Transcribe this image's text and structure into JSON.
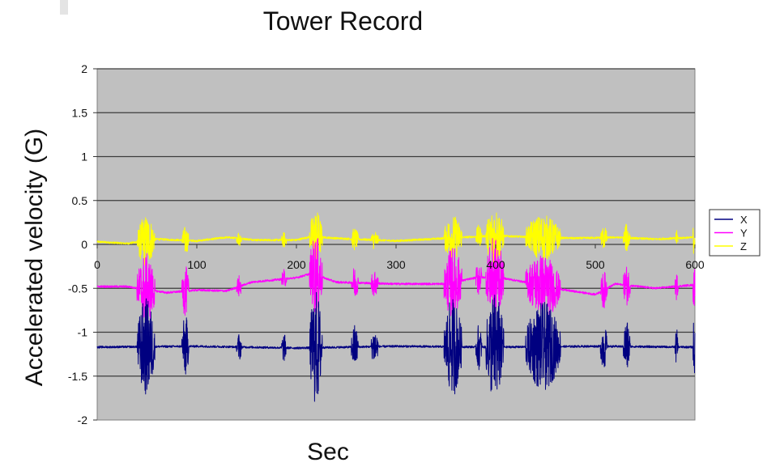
{
  "chart_data": {
    "type": "line",
    "title": "Tower Record",
    "xlabel": "Sec",
    "ylabel": "Accelerated velocity (G)",
    "xlim": [
      0,
      600
    ],
    "ylim": [
      -2,
      2
    ],
    "x_ticks": [
      "0",
      "100",
      "200",
      "300",
      "400",
      "500",
      "600"
    ],
    "y_ticks": [
      "2",
      "1.5",
      "1",
      "0.5",
      "0",
      "-0.5",
      "-1",
      "-1.5",
      "-2"
    ],
    "y_tick_values": [
      2,
      1.5,
      1,
      0.5,
      0,
      -0.5,
      -1,
      -1.5,
      -2
    ],
    "grid": true,
    "plot_background": "#c0c0c0",
    "legend_position": "right",
    "series": [
      {
        "name": "X",
        "color": "#000080",
        "baseline": -1.17,
        "bands": 3,
        "keypoints": [
          [
            0,
            -1.17
          ],
          [
            100,
            -1.16
          ],
          [
            200,
            -1.18
          ],
          [
            300,
            -1.16
          ],
          [
            400,
            -1.17
          ],
          [
            500,
            -1.16
          ],
          [
            600,
            -1.17
          ]
        ],
        "bursts": [
          [
            40,
            58,
            0.55
          ],
          [
            85,
            92,
            0.35
          ],
          [
            140,
            145,
            0.15
          ],
          [
            185,
            190,
            0.15
          ],
          [
            213,
            226,
            0.65
          ],
          [
            255,
            262,
            0.25
          ],
          [
            275,
            282,
            0.2
          ],
          [
            348,
            366,
            0.55
          ],
          [
            380,
            386,
            0.25
          ],
          [
            390,
            408,
            0.62
          ],
          [
            430,
            465,
            0.5
          ],
          [
            505,
            512,
            0.25
          ],
          [
            528,
            535,
            0.3
          ],
          [
            580,
            583,
            0.2
          ],
          [
            598,
            600,
            0.45
          ]
        ]
      },
      {
        "name": "Y",
        "color": "#ff00ff",
        "baseline": -0.5,
        "bands": 3,
        "keypoints": [
          [
            0,
            -0.48
          ],
          [
            30,
            -0.48
          ],
          [
            70,
            -0.55
          ],
          [
            100,
            -0.52
          ],
          [
            130,
            -0.53
          ],
          [
            155,
            -0.43
          ],
          [
            200,
            -0.38
          ],
          [
            215,
            -0.33
          ],
          [
            240,
            -0.43
          ],
          [
            300,
            -0.45
          ],
          [
            350,
            -0.45
          ],
          [
            380,
            -0.38
          ],
          [
            400,
            -0.37
          ],
          [
            440,
            -0.45
          ],
          [
            470,
            -0.52
          ],
          [
            500,
            -0.57
          ],
          [
            520,
            -0.45
          ],
          [
            560,
            -0.5
          ],
          [
            600,
            -0.46
          ]
        ],
        "bursts": [
          [
            40,
            58,
            0.4
          ],
          [
            85,
            92,
            0.28
          ],
          [
            140,
            145,
            0.12
          ],
          [
            185,
            190,
            0.1
          ],
          [
            213,
            226,
            0.45
          ],
          [
            255,
            262,
            0.18
          ],
          [
            275,
            282,
            0.16
          ],
          [
            348,
            366,
            0.4
          ],
          [
            380,
            386,
            0.2
          ],
          [
            390,
            408,
            0.45
          ],
          [
            430,
            465,
            0.35
          ],
          [
            505,
            512,
            0.2
          ],
          [
            528,
            535,
            0.22
          ],
          [
            580,
            583,
            0.15
          ],
          [
            598,
            600,
            0.35
          ]
        ]
      },
      {
        "name": "Z",
        "color": "#ffff00",
        "baseline": 0.05,
        "bands": 3,
        "keypoints": [
          [
            0,
            0.03
          ],
          [
            30,
            0.01
          ],
          [
            60,
            0.06
          ],
          [
            100,
            0.04
          ],
          [
            130,
            0.08
          ],
          [
            160,
            0.05
          ],
          [
            200,
            0.05
          ],
          [
            215,
            0.09
          ],
          [
            240,
            0.07
          ],
          [
            300,
            0.04
          ],
          [
            350,
            0.07
          ],
          [
            400,
            0.1
          ],
          [
            440,
            0.08
          ],
          [
            480,
            0.07
          ],
          [
            520,
            0.08
          ],
          [
            560,
            0.06
          ],
          [
            600,
            0.08
          ]
        ],
        "bursts": [
          [
            40,
            58,
            0.28
          ],
          [
            85,
            92,
            0.15
          ],
          [
            140,
            145,
            0.08
          ],
          [
            185,
            190,
            0.08
          ],
          [
            213,
            226,
            0.3
          ],
          [
            255,
            262,
            0.12
          ],
          [
            275,
            282,
            0.1
          ],
          [
            348,
            366,
            0.25
          ],
          [
            380,
            386,
            0.12
          ],
          [
            390,
            408,
            0.32
          ],
          [
            430,
            465,
            0.25
          ],
          [
            505,
            512,
            0.12
          ],
          [
            528,
            535,
            0.15
          ],
          [
            580,
            583,
            0.08
          ],
          [
            598,
            600,
            0.2
          ]
        ]
      }
    ]
  }
}
